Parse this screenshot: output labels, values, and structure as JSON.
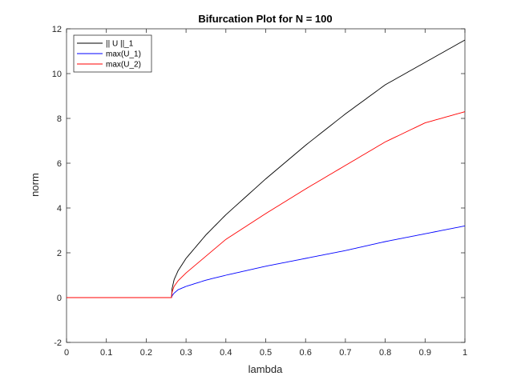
{
  "chart_data": {
    "type": "line",
    "title": "Bifurcation Plot for N = 100",
    "xlabel": "lambda",
    "ylabel": "norm",
    "xlim": [
      0,
      1
    ],
    "ylim": [
      -2,
      12
    ],
    "xticks": [
      "0",
      "0.1",
      "0.2",
      "0.3",
      "0.4",
      "0.5",
      "0.6",
      "0.7",
      "0.8",
      "0.9",
      "1"
    ],
    "yticks": [
      "-2",
      "0",
      "2",
      "4",
      "6",
      "8",
      "10",
      "12"
    ],
    "grid": false,
    "legend": "top-left",
    "bifurcation_lambda": 0.2635,
    "series": [
      {
        "name": "|| U ||_1",
        "color": "#000000",
        "x": [
          0,
          0.2635,
          0.265,
          0.27,
          0.28,
          0.3,
          0.35,
          0.4,
          0.5,
          0.6,
          0.7,
          0.8,
          0.9,
          1.0
        ],
        "y": [
          0,
          0,
          0.4,
          0.8,
          1.2,
          1.75,
          2.8,
          3.7,
          5.3,
          6.8,
          8.2,
          9.5,
          10.5,
          11.5
        ]
      },
      {
        "name": "max(U_1)",
        "color": "#0000ff",
        "x": [
          0,
          0.2635,
          0.265,
          0.27,
          0.28,
          0.3,
          0.35,
          0.4,
          0.5,
          0.6,
          0.7,
          0.8,
          0.9,
          1.0
        ],
        "y": [
          0,
          0,
          0.08,
          0.2,
          0.35,
          0.5,
          0.78,
          1.0,
          1.4,
          1.75,
          2.1,
          2.5,
          2.85,
          3.2
        ]
      },
      {
        "name": "max(U_2)",
        "color": "#ff0000",
        "x": [
          0,
          0.2635,
          0.265,
          0.27,
          0.28,
          0.3,
          0.35,
          0.4,
          0.5,
          0.6,
          0.7,
          0.8,
          0.9,
          1.0
        ],
        "y": [
          0,
          0,
          0.25,
          0.5,
          0.75,
          1.1,
          1.85,
          2.6,
          3.75,
          4.85,
          5.9,
          6.95,
          7.8,
          8.3
        ]
      }
    ]
  }
}
